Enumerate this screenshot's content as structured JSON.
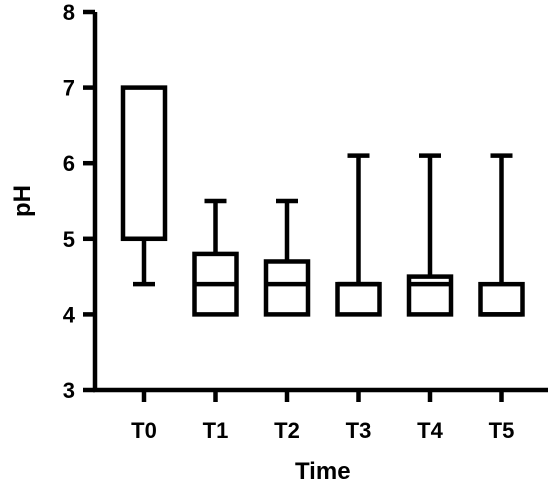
{
  "chart_data": {
    "type": "boxplot",
    "title": "",
    "xlabel": "Time",
    "ylabel": "pH",
    "ylim": [
      3,
      8
    ],
    "yticks": [
      3,
      4,
      5,
      6,
      7,
      8
    ],
    "categories": [
      "T0",
      "T1",
      "T2",
      "T3",
      "T4",
      "T5"
    ],
    "boxes": [
      {
        "label": "T0",
        "min": 4.4,
        "q1": 5.0,
        "median": 5.0,
        "q3": 7.0,
        "max": 7.0
      },
      {
        "label": "T1",
        "min": 4.0,
        "q1": 4.0,
        "median": 4.4,
        "q3": 4.8,
        "max": 5.5
      },
      {
        "label": "T2",
        "min": 4.0,
        "q1": 4.0,
        "median": 4.4,
        "q3": 4.7,
        "max": 5.5
      },
      {
        "label": "T3",
        "min": 4.0,
        "q1": 4.0,
        "median": 4.4,
        "q3": 4.4,
        "max": 6.1
      },
      {
        "label": "T4",
        "min": 4.0,
        "q1": 4.0,
        "median": 4.4,
        "q3": 4.5,
        "max": 6.1
      },
      {
        "label": "T5",
        "min": 4.0,
        "q1": 4.0,
        "median": 4.0,
        "q3": 4.4,
        "max": 6.1
      }
    ],
    "grid": false,
    "legend": "none",
    "color": "#000000"
  }
}
